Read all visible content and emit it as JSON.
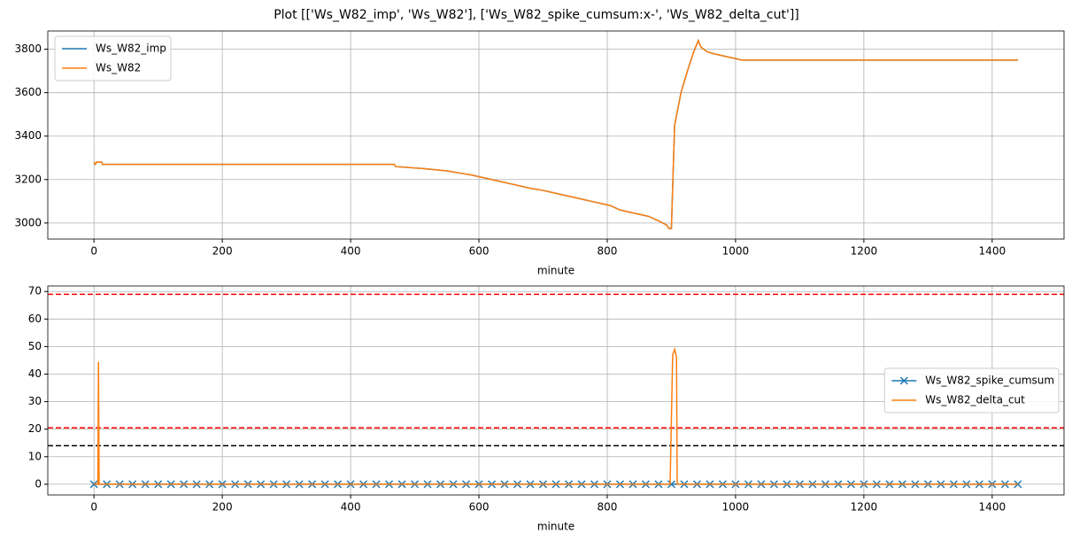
{
  "title": "Plot [['Ws_W82_imp', 'Ws_W82'], ['Ws_W82_spike_cumsum:x-', 'Ws_W82_delta_cut']]",
  "chart_data": [
    {
      "type": "line",
      "xlabel": "minute",
      "grid": true,
      "legend": "upper left",
      "xlim": [
        -72,
        1512
      ],
      "xticks": [
        0,
        200,
        400,
        600,
        800,
        1000,
        1200,
        1400
      ],
      "ylim": [
        2926,
        3884
      ],
      "yticks": [
        3000,
        3200,
        3400,
        3600,
        3800
      ],
      "x": [
        0,
        2,
        4,
        12,
        13,
        468,
        470,
        515,
        550,
        570,
        590,
        605,
        620,
        635,
        650,
        665,
        680,
        700,
        715,
        730,
        745,
        760,
        775,
        790,
        805,
        820,
        835,
        850,
        865,
        880,
        893,
        896,
        900,
        905,
        915,
        925,
        935,
        942,
        946,
        955,
        965,
        980,
        995,
        1010,
        1440
      ],
      "series": [
        {
          "name": "Ws_W82_imp",
          "color": "#1f77b4",
          "values": [
            3280,
            3270,
            3280,
            3280,
            3270,
            3270,
            3260,
            3250,
            3240,
            3230,
            3220,
            3210,
            3200,
            3190,
            3180,
            3170,
            3160,
            3150,
            3140,
            3130,
            3120,
            3110,
            3100,
            3090,
            3080,
            3060,
            3050,
            3040,
            3030,
            3010,
            2990,
            2975,
            2975,
            3450,
            3600,
            3700,
            3790,
            3840,
            3810,
            3790,
            3780,
            3770,
            3760,
            3750,
            3750
          ]
        },
        {
          "name": "Ws_W82",
          "color": "#ff7f0e",
          "values": [
            3280,
            3270,
            3280,
            3280,
            3270,
            3270,
            3260,
            3250,
            3240,
            3230,
            3220,
            3210,
            3200,
            3190,
            3180,
            3170,
            3160,
            3150,
            3140,
            3130,
            3120,
            3110,
            3100,
            3090,
            3080,
            3060,
            3050,
            3040,
            3030,
            3010,
            2990,
            2975,
            2975,
            3450,
            3600,
            3700,
            3790,
            3840,
            3810,
            3790,
            3780,
            3770,
            3760,
            3750,
            3750
          ]
        }
      ]
    },
    {
      "type": "line",
      "xlabel": "minute",
      "grid": true,
      "legend": "center right",
      "xlim": [
        -72,
        1512
      ],
      "xticks": [
        0,
        200,
        400,
        600,
        800,
        1000,
        1200,
        1400
      ],
      "ylim": [
        -3.9,
        72
      ],
      "yticks": [
        0,
        10,
        20,
        30,
        40,
        50,
        60,
        70
      ],
      "hlines": [
        {
          "value": 69,
          "color": "#ff0000"
        },
        {
          "value": 20.5,
          "color": "#ff0000"
        },
        {
          "value": 14,
          "color": "#000000"
        }
      ],
      "series": [
        {
          "name": "Ws_W82_spike_cumsum",
          "color": "#1f77b4",
          "marker": "x",
          "x": [
            0,
            20,
            40,
            60,
            80,
            100,
            120,
            140,
            160,
            180,
            200,
            220,
            240,
            260,
            280,
            300,
            320,
            340,
            360,
            380,
            400,
            420,
            440,
            460,
            480,
            500,
            520,
            540,
            560,
            580,
            600,
            620,
            640,
            660,
            680,
            700,
            720,
            740,
            760,
            780,
            800,
            820,
            840,
            860,
            880,
            900,
            920,
            940,
            960,
            980,
            1000,
            1020,
            1040,
            1060,
            1080,
            1100,
            1120,
            1140,
            1160,
            1180,
            1200,
            1220,
            1240,
            1260,
            1280,
            1300,
            1320,
            1340,
            1360,
            1380,
            1400,
            1420,
            1440
          ],
          "values": [
            0,
            0,
            0,
            0,
            0,
            0,
            0,
            0,
            0,
            0,
            0,
            0,
            0,
            0,
            0,
            0,
            0,
            0,
            0,
            0,
            0,
            0,
            0,
            0,
            0,
            0,
            0,
            0,
            0,
            0,
            0,
            0,
            0,
            0,
            0,
            0,
            0,
            0,
            0,
            0,
            0,
            0,
            0,
            0,
            0,
            0,
            0,
            0,
            0,
            0,
            0,
            0,
            0,
            0,
            0,
            0,
            0,
            0,
            0,
            0,
            0,
            0,
            0,
            0,
            0,
            0,
            0,
            0,
            0,
            0,
            0,
            0,
            0
          ]
        },
        {
          "name": "Ws_W82_delta_cut",
          "color": "#ff7f0e",
          "x": [
            0,
            6,
            7,
            8,
            898,
            902,
            905,
            908,
            909,
            1440
          ],
          "values": [
            0,
            0,
            44.5,
            0,
            0,
            47,
            49,
            46,
            0,
            0
          ]
        }
      ]
    }
  ]
}
